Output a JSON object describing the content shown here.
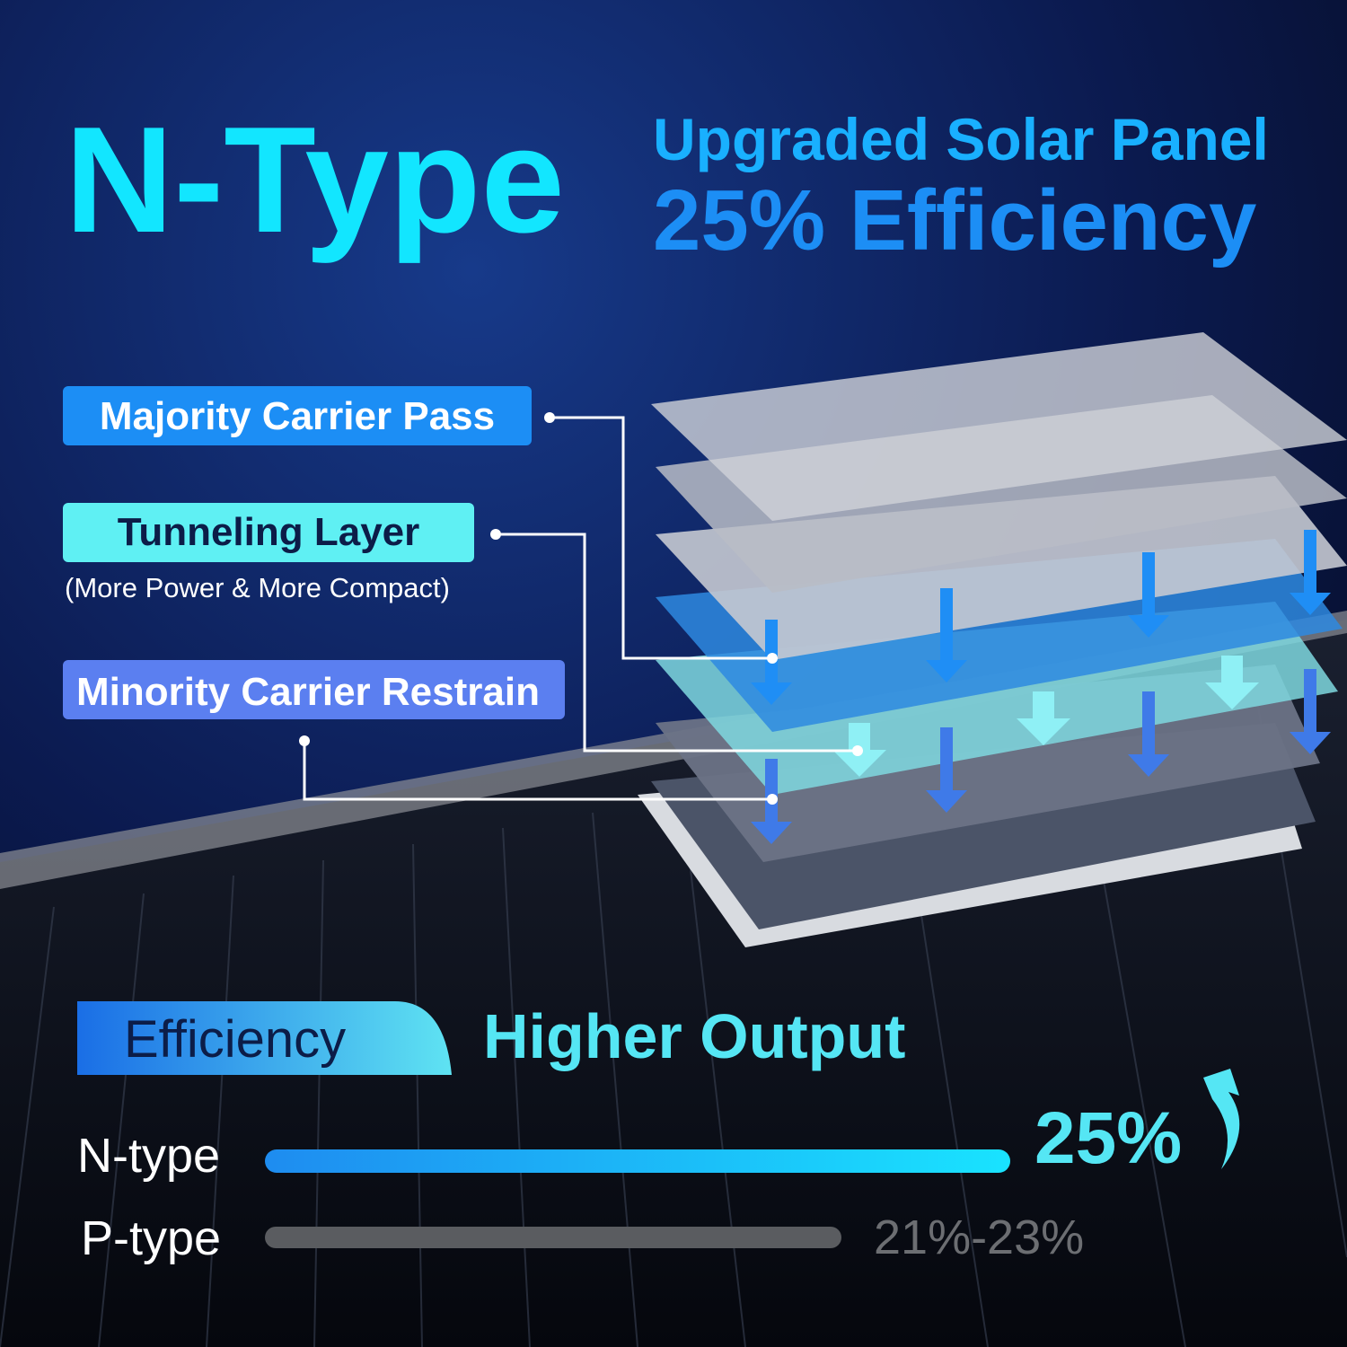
{
  "header": {
    "title": "N-Type",
    "subtitle": "Upgraded Solar Panel",
    "headline": "25% Efficiency"
  },
  "callouts": [
    {
      "label": "Majority Carrier Pass"
    },
    {
      "label": "Tunneling Layer",
      "note": "(More Power & More Compact)"
    },
    {
      "label": "Minority Carrier Restrain"
    }
  ],
  "comparison": {
    "badge": "Efficiency",
    "title": "Higher Output",
    "rows": [
      {
        "label": "N-type",
        "value": "25%"
      },
      {
        "label": "P-type",
        "value": "21%-23%"
      }
    ]
  }
}
